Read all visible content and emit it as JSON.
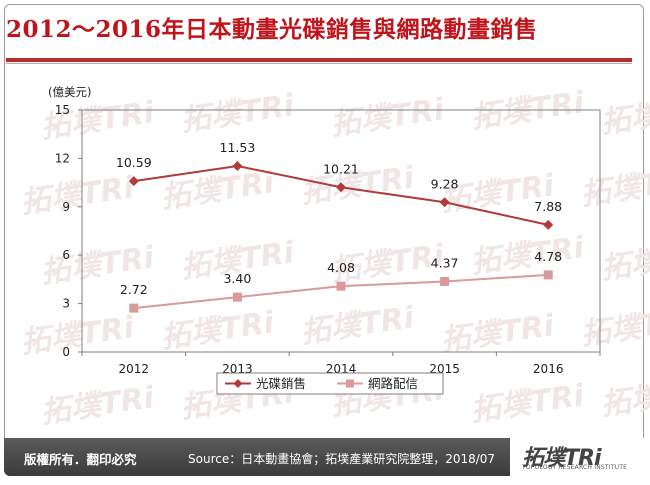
{
  "title": "2012～2016年日本動畫光碟銷售與網路動畫銷售",
  "chart_data": {
    "type": "line",
    "unit_label": "(億美元)",
    "categories": [
      "2012",
      "2013",
      "2014",
      "2015",
      "2016"
    ],
    "ylim": [
      0,
      15
    ],
    "yticks": [
      0,
      3,
      6,
      9,
      12,
      15
    ],
    "ytick_labels": [
      "0",
      "3",
      "6",
      "9",
      "12",
      "15"
    ],
    "grid": false,
    "legend_position": "bottom",
    "series": [
      {
        "name": "光碟銷售",
        "values": [
          10.59,
          11.53,
          10.21,
          9.28,
          7.88
        ],
        "labels": [
          "10.59",
          "11.53",
          "10.21",
          "9.28",
          "7.88"
        ],
        "color": "#b23a3a",
        "marker": "diamond"
      },
      {
        "name": "網路配信",
        "values": [
          2.72,
          3.4,
          4.08,
          4.37,
          4.78
        ],
        "labels": [
          "2.72",
          "3.40",
          "4.08",
          "4.37",
          "4.78"
        ],
        "color": "#d99a9a",
        "marker": "square"
      }
    ]
  },
  "footer": {
    "copyright": "版權所有．翻印必究",
    "source": "Source：日本動畫協會；拓墣產業研究院整理，2018/07",
    "logo_text": "拓墣TRi",
    "logo_subtitle": "TOPOLOGY RESEARCH INSTITUTE"
  },
  "watermark": "拓墣TRi"
}
